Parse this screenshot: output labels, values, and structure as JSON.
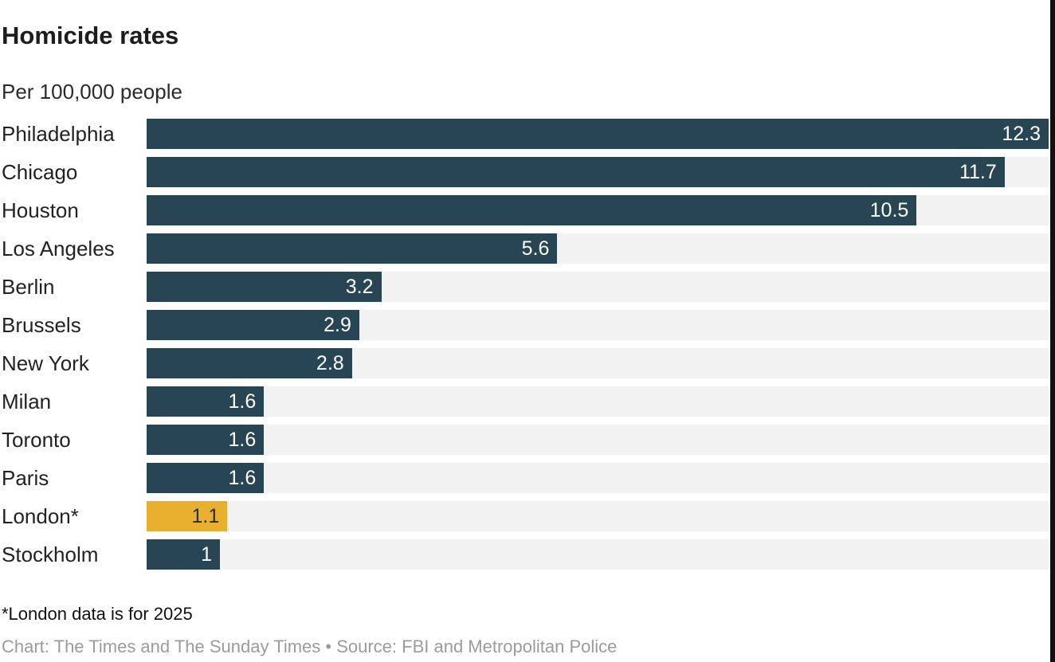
{
  "header": {
    "title": "Homicide rates",
    "subtitle": "Per 100,000 people"
  },
  "footer": {
    "footnote": "*London data is for 2025",
    "credit": "Chart: The Times and The Sunday Times • Source: FBI and Metropolitan Police"
  },
  "chart_data": {
    "type": "bar",
    "orientation": "horizontal",
    "title": "Homicide rates",
    "subtitle": "Per 100,000 people",
    "xlabel": "",
    "ylabel": "",
    "xlim": [
      0,
      12.3
    ],
    "grid": false,
    "legend": false,
    "categories": [
      "Philadelphia",
      "Chicago",
      "Houston",
      "Los Angeles",
      "Berlin",
      "Brussels",
      "New York",
      "Milan",
      "Toronto",
      "Paris",
      "London*",
      "Stockholm"
    ],
    "values": [
      12.3,
      11.7,
      10.5,
      5.6,
      3.2,
      2.9,
      2.8,
      1.6,
      1.6,
      1.6,
      1.1,
      1
    ],
    "value_labels": [
      "12.3",
      "11.7",
      "10.5",
      "5.6",
      "3.2",
      "2.9",
      "2.8",
      "1.6",
      "1.6",
      "1.6",
      "1.1",
      "1"
    ],
    "highlighted_category": "London*",
    "colors": {
      "bar": "#274552",
      "highlight_bar": "#e9b02f",
      "track": "#f2f2f2",
      "value_label_on_bar": "#ffffff",
      "value_label_on_highlight": "#21313a",
      "edge_strip": "#111111"
    }
  }
}
